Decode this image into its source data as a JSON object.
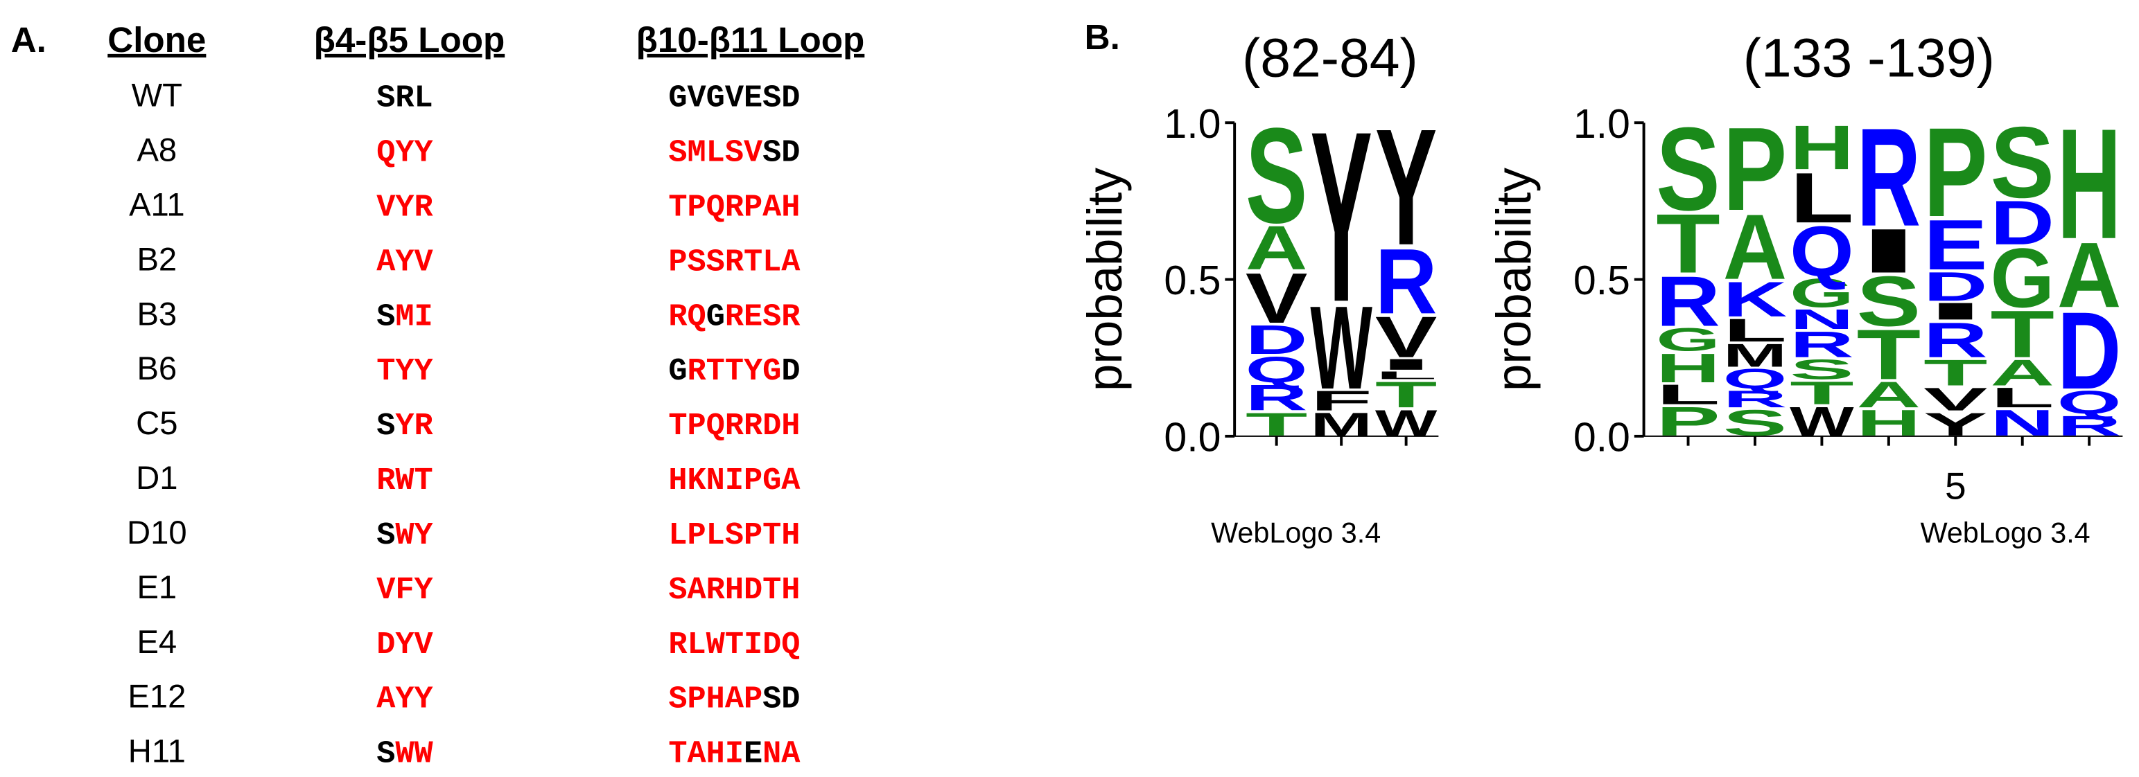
{
  "panel_a": {
    "label": "A.",
    "headers": [
      "Clone",
      "β4-β5 Loop",
      "β10-β11 Loop"
    ],
    "mutated_color": "#ff0000",
    "conserved_color": "#000000",
    "rows": [
      {
        "clone": "WT",
        "loop1": [
          {
            "text": "SRL",
            "mutated": false
          }
        ],
        "loop2": [
          {
            "text": "GVGVESD",
            "mutated": false
          }
        ]
      },
      {
        "clone": "A8",
        "loop1": [
          {
            "text": "QYY",
            "mutated": true
          }
        ],
        "loop2": [
          {
            "text": "SMLSV",
            "mutated": true
          },
          {
            "text": "SD",
            "mutated": false
          }
        ]
      },
      {
        "clone": "A11",
        "loop1": [
          {
            "text": "VYR",
            "mutated": true
          }
        ],
        "loop2": [
          {
            "text": "TPQRPAH",
            "mutated": true
          }
        ]
      },
      {
        "clone": "B2",
        "loop1": [
          {
            "text": "AYV",
            "mutated": true
          }
        ],
        "loop2": [
          {
            "text": "PSSRTLA",
            "mutated": true
          }
        ]
      },
      {
        "clone": "B3",
        "loop1": [
          {
            "text": "S",
            "mutated": false
          },
          {
            "text": "MI",
            "mutated": true
          }
        ],
        "loop2": [
          {
            "text": "RQ",
            "mutated": true
          },
          {
            "text": "G",
            "mutated": false
          },
          {
            "text": "RESR",
            "mutated": true
          }
        ]
      },
      {
        "clone": "B6",
        "loop1": [
          {
            "text": "TYY",
            "mutated": true
          }
        ],
        "loop2": [
          {
            "text": "G",
            "mutated": false
          },
          {
            "text": "RTTYG",
            "mutated": true
          },
          {
            "text": "D",
            "mutated": false
          }
        ]
      },
      {
        "clone": "C5",
        "loop1": [
          {
            "text": "S",
            "mutated": false
          },
          {
            "text": "YR",
            "mutated": true
          }
        ],
        "loop2": [
          {
            "text": "TPQRRDH",
            "mutated": true
          }
        ]
      },
      {
        "clone": "D1",
        "loop1": [
          {
            "text": "RWT",
            "mutated": true
          }
        ],
        "loop2": [
          {
            "text": "HKNIPGA",
            "mutated": true
          }
        ]
      },
      {
        "clone": "D10",
        "loop1": [
          {
            "text": "S",
            "mutated": false
          },
          {
            "text": "WY",
            "mutated": true
          }
        ],
        "loop2": [
          {
            "text": "LPLSPTH",
            "mutated": true
          }
        ]
      },
      {
        "clone": "E1",
        "loop1": [
          {
            "text": "VFY",
            "mutated": true
          }
        ],
        "loop2": [
          {
            "text": "SARHDTH",
            "mutated": true
          }
        ]
      },
      {
        "clone": "E4",
        "loop1": [
          {
            "text": "DYV",
            "mutated": true
          }
        ],
        "loop2": [
          {
            "text": "RLWTIDQ",
            "mutated": true
          }
        ]
      },
      {
        "clone": "E12",
        "loop1": [
          {
            "text": "AYY",
            "mutated": true
          }
        ],
        "loop2": [
          {
            "text": "SPHAP",
            "mutated": true
          },
          {
            "text": "SD",
            "mutated": false
          }
        ]
      },
      {
        "clone": "H11",
        "loop1": [
          {
            "text": "S",
            "mutated": false
          },
          {
            "text": "WW",
            "mutated": true
          }
        ],
        "loop2": [
          {
            "text": "TAHI",
            "mutated": true
          },
          {
            "text": "E",
            "mutated": false
          },
          {
            "text": "NA",
            "mutated": true
          }
        ]
      }
    ]
  },
  "panel_b": {
    "label": "B.",
    "logos": [
      {
        "title": "(82-84)",
        "ylabel": "probability",
        "footer": "WebLogo 3.4",
        "ylim": [
          0,
          1
        ],
        "yticks": [
          {
            "value": 0,
            "label": "0.0"
          },
          {
            "value": 0.5,
            "label": "0.5"
          },
          {
            "value": 1,
            "label": "1.0"
          }
        ],
        "columns": [
          [
            {
              "letter": "T",
              "value": 0.08,
              "color": "#1a8a1a"
            },
            {
              "letter": "R",
              "value": 0.09,
              "color": "#0000ff"
            },
            {
              "letter": "Q",
              "value": 0.09,
              "color": "#0000ff"
            },
            {
              "letter": "D",
              "value": 0.1,
              "color": "#0000ff"
            },
            {
              "letter": "V",
              "value": 0.17,
              "color": "#000000"
            },
            {
              "letter": "A",
              "value": 0.15,
              "color": "#1a8a1a"
            },
            {
              "letter": "S",
              "value": 0.32,
              "color": "#1a8a1a"
            }
          ],
          [
            {
              "letter": "M",
              "value": 0.08,
              "color": "#000000"
            },
            {
              "letter": "F",
              "value": 0.07,
              "color": "#000000"
            },
            {
              "letter": "W",
              "value": 0.28,
              "color": "#000000"
            },
            {
              "letter": "Y",
              "value": 0.57,
              "color": "#000000"
            }
          ],
          [
            {
              "letter": "W",
              "value": 0.09,
              "color": "#000000"
            },
            {
              "letter": "T",
              "value": 0.09,
              "color": "#1a8a1a"
            },
            {
              "letter": "L",
              "value": 0.03,
              "color": "#000000"
            },
            {
              "letter": "I",
              "value": 0.04,
              "color": "#000000"
            },
            {
              "letter": "V",
              "value": 0.14,
              "color": "#000000"
            },
            {
              "letter": "R",
              "value": 0.22,
              "color": "#0000ff"
            },
            {
              "letter": "Y",
              "value": 0.39,
              "color": "#000000"
            }
          ]
        ]
      },
      {
        "title": "(133 -139)",
        "ylabel": "probability",
        "footer": "WebLogo 3.4",
        "ylim": [
          0,
          1
        ],
        "yticks": [
          {
            "value": 0,
            "label": "0.0"
          },
          {
            "value": 0.5,
            "label": "0.5"
          },
          {
            "value": 1,
            "label": "1.0"
          }
        ],
        "xticks": [
          5
        ],
        "columns": [
          [
            {
              "letter": "P",
              "value": 0.1,
              "color": "#1a8a1a"
            },
            {
              "letter": "L",
              "value": 0.07,
              "color": "#000000"
            },
            {
              "letter": "H",
              "value": 0.1,
              "color": "#1a8a1a"
            },
            {
              "letter": "G",
              "value": 0.08,
              "color": "#1a8a1a"
            },
            {
              "letter": "R",
              "value": 0.17,
              "color": "#0000ff"
            },
            {
              "letter": "T",
              "value": 0.2,
              "color": "#1a8a1a"
            },
            {
              "letter": "S",
              "value": 0.28,
              "color": "#1a8a1a"
            }
          ],
          [
            {
              "letter": "S",
              "value": 0.09,
              "color": "#1a8a1a"
            },
            {
              "letter": "R",
              "value": 0.06,
              "color": "#0000ff"
            },
            {
              "letter": "Q",
              "value": 0.07,
              "color": "#0000ff"
            },
            {
              "letter": "M",
              "value": 0.08,
              "color": "#000000"
            },
            {
              "letter": "L",
              "value": 0.08,
              "color": "#000000"
            },
            {
              "letter": "K",
              "value": 0.12,
              "color": "#0000ff"
            },
            {
              "letter": "A",
              "value": 0.22,
              "color": "#1a8a1a"
            },
            {
              "letter": "P",
              "value": 0.28,
              "color": "#1a8a1a"
            }
          ],
          [
            {
              "letter": "W",
              "value": 0.1,
              "color": "#000000"
            },
            {
              "letter": "T",
              "value": 0.08,
              "color": "#1a8a1a"
            },
            {
              "letter": "S",
              "value": 0.07,
              "color": "#1a8a1a"
            },
            {
              "letter": "R",
              "value": 0.09,
              "color": "#0000ff"
            },
            {
              "letter": "N",
              "value": 0.07,
              "color": "#0000ff"
            },
            {
              "letter": "G",
              "value": 0.1,
              "color": "#1a8a1a"
            },
            {
              "letter": "Q",
              "value": 0.17,
              "color": "#0000ff"
            },
            {
              "letter": "L",
              "value": 0.17,
              "color": "#000000"
            },
            {
              "letter": "H",
              "value": 0.15,
              "color": "#1a8a1a"
            }
          ],
          [
            {
              "letter": "H",
              "value": 0.09,
              "color": "#1a8a1a"
            },
            {
              "letter": "A",
              "value": 0.09,
              "color": "#1a8a1a"
            },
            {
              "letter": "T",
              "value": 0.17,
              "color": "#1a8a1a"
            },
            {
              "letter": "S",
              "value": 0.17,
              "color": "#1a8a1a"
            },
            {
              "letter": "I",
              "value": 0.15,
              "color": "#000000"
            },
            {
              "letter": "R",
              "value": 0.33,
              "color": "#0000ff"
            }
          ],
          [
            {
              "letter": "Y",
              "value": 0.08,
              "color": "#000000"
            },
            {
              "letter": "V",
              "value": 0.08,
              "color": "#000000"
            },
            {
              "letter": "T",
              "value": 0.09,
              "color": "#1a8a1a"
            },
            {
              "letter": "R",
              "value": 0.12,
              "color": "#0000ff"
            },
            {
              "letter": "I",
              "value": 0.06,
              "color": "#000000"
            },
            {
              "letter": "D",
              "value": 0.1,
              "color": "#0000ff"
            },
            {
              "letter": "E",
              "value": 0.17,
              "color": "#0000ff"
            },
            {
              "letter": "P",
              "value": 0.3,
              "color": "#1a8a1a"
            }
          ],
          [
            {
              "letter": "N",
              "value": 0.09,
              "color": "#0000ff"
            },
            {
              "letter": "L",
              "value": 0.07,
              "color": "#000000"
            },
            {
              "letter": "A",
              "value": 0.09,
              "color": "#1a8a1a"
            },
            {
              "letter": "T",
              "value": 0.16,
              "color": "#1a8a1a"
            },
            {
              "letter": "G",
              "value": 0.2,
              "color": "#1a8a1a"
            },
            {
              "letter": "D",
              "value": 0.15,
              "color": "#0000ff"
            },
            {
              "letter": "S",
              "value": 0.24,
              "color": "#1a8a1a"
            }
          ],
          [
            {
              "letter": "R",
              "value": 0.07,
              "color": "#0000ff"
            },
            {
              "letter": "Q",
              "value": 0.08,
              "color": "#0000ff"
            },
            {
              "letter": "D",
              "value": 0.26,
              "color": "#0000ff"
            },
            {
              "letter": "A",
              "value": 0.22,
              "color": "#1a8a1a"
            },
            {
              "letter": "H",
              "value": 0.37,
              "color": "#1a8a1a"
            }
          ]
        ]
      }
    ]
  }
}
